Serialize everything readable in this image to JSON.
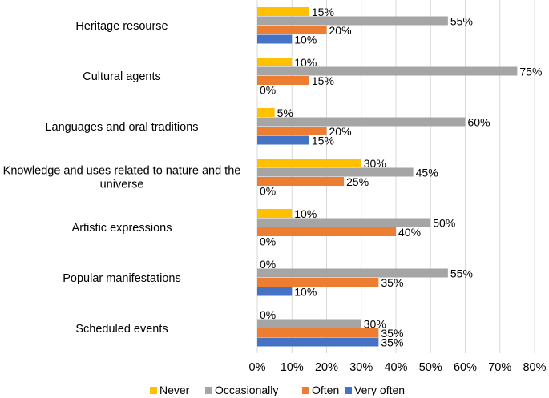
{
  "chart_data": {
    "type": "bar",
    "orientation": "horizontal",
    "title": "",
    "xlabel": "",
    "ylabel": "",
    "xlim": [
      0,
      80
    ],
    "x_ticks": [
      "0%",
      "10%",
      "20%",
      "30%",
      "40%",
      "50%",
      "60%",
      "70%",
      "80%"
    ],
    "grid": "vertical",
    "legend_position": "bottom",
    "categories": [
      {
        "label_lines": [
          "Heritage resourse"
        ]
      },
      {
        "label_lines": [
          "Cultural agents"
        ]
      },
      {
        "label_lines": [
          "Languages and oral traditions"
        ]
      },
      {
        "label_lines": [
          "Knowledge and uses related to nature and the",
          "universe"
        ]
      },
      {
        "label_lines": [
          "Artistic expressions"
        ]
      },
      {
        "label_lines": [
          "Popular manifestations"
        ]
      },
      {
        "label_lines": [
          "Scheduled events"
        ]
      }
    ],
    "series": [
      {
        "name": "Never",
        "color": "#FFC000",
        "values": [
          15,
          10,
          5,
          30,
          10,
          0,
          0
        ],
        "labels": [
          "15%",
          "10%",
          "5%",
          "30%",
          "10%",
          "0%",
          "0%"
        ]
      },
      {
        "name": "Occasionally",
        "color": "#A5A5A5",
        "values": [
          55,
          75,
          60,
          45,
          50,
          55,
          30
        ],
        "labels": [
          "55%",
          "75%",
          "60%",
          "45%",
          "50%",
          "55%",
          "30%"
        ]
      },
      {
        "name": "Often",
        "color": "#ED7D31",
        "values": [
          20,
          15,
          20,
          25,
          40,
          35,
          35
        ],
        "labels": [
          "20%",
          "15%",
          "20%",
          "25%",
          "40%",
          "35%",
          "35%"
        ]
      },
      {
        "name": "Very often",
        "color": "#4472C4",
        "values": [
          10,
          0,
          15,
          0,
          0,
          10,
          35
        ],
        "labels": [
          "10%",
          "0%",
          "15%",
          "0%",
          "0%",
          "10%",
          "35%"
        ]
      }
    ]
  }
}
